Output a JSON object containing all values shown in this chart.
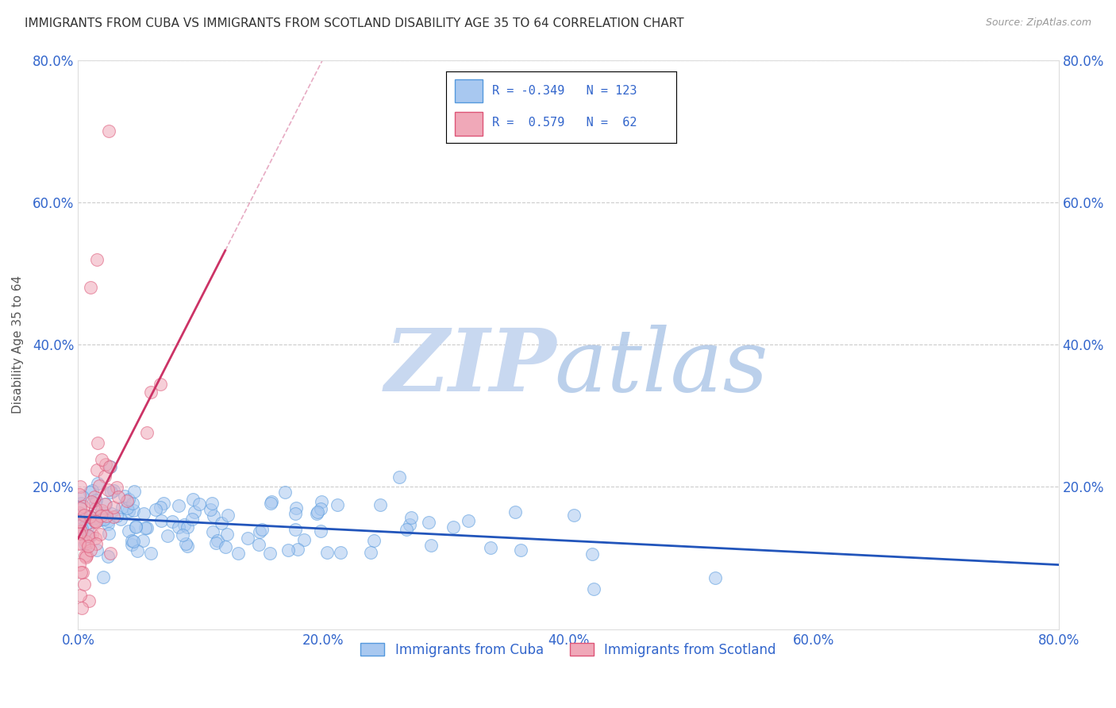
{
  "title": "IMMIGRANTS FROM CUBA VS IMMIGRANTS FROM SCOTLAND DISABILITY AGE 35 TO 64 CORRELATION CHART",
  "source": "Source: ZipAtlas.com",
  "ylabel": "Disability Age 35 to 64",
  "xlim": [
    0.0,
    0.8
  ],
  "ylim": [
    0.0,
    0.8
  ],
  "xtick_vals": [
    0.0,
    0.2,
    0.4,
    0.6,
    0.8
  ],
  "ytick_vals": [
    0.0,
    0.2,
    0.4,
    0.6,
    0.8
  ],
  "cuba_color": "#a8c8f0",
  "cuba_edge_color": "#5599dd",
  "scotland_color": "#f0a8b8",
  "scotland_edge_color": "#dd5577",
  "cuba_R": -0.349,
  "cuba_N": 123,
  "scotland_R": 0.579,
  "scotland_N": 62,
  "legend_text_color": "#3366cc",
  "watermark_color_zip": "#c8d8f0",
  "watermark_color_atlas": "#b0c8e8",
  "grid_color": "#cccccc",
  "background_color": "#ffffff",
  "tick_label_color": "#3366cc",
  "title_fontsize": 11,
  "seed": 42
}
